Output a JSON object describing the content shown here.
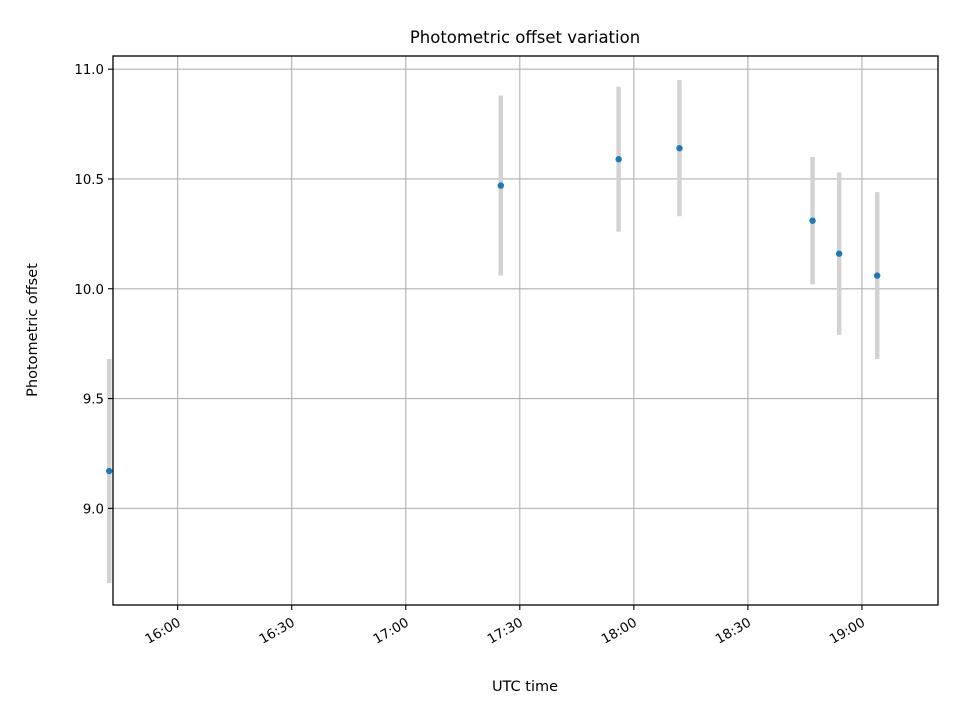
{
  "chart_data": {
    "type": "scatter",
    "title": "Photometric offset variation",
    "xlabel": "UTC time",
    "ylabel": "Photometric offset",
    "x_axis_type": "time",
    "xlim": [
      "15:43",
      "19:20"
    ],
    "ylim": [
      8.56,
      11.06
    ],
    "x_ticks": [
      "16:00",
      "16:30",
      "17:00",
      "17:30",
      "18:00",
      "18:30",
      "19:00"
    ],
    "y_ticks": [
      9.0,
      9.5,
      10.0,
      10.5,
      11.0
    ],
    "y_tick_labels": [
      "9.0",
      "9.5",
      "10.0",
      "10.5",
      "11.0"
    ],
    "grid": true,
    "marker_color": "#1f77b4",
    "errorbar_color": "#d3d3d3",
    "series": [
      {
        "x": [
          "15:42",
          "17:25",
          "17:56",
          "18:12",
          "18:47",
          "18:54",
          "19:04"
        ],
        "y": [
          9.17,
          10.47,
          10.59,
          10.64,
          10.31,
          10.16,
          10.06
        ],
        "yerr": [
          0.51,
          0.41,
          0.33,
          0.31,
          0.29,
          0.37,
          0.38
        ]
      }
    ]
  }
}
